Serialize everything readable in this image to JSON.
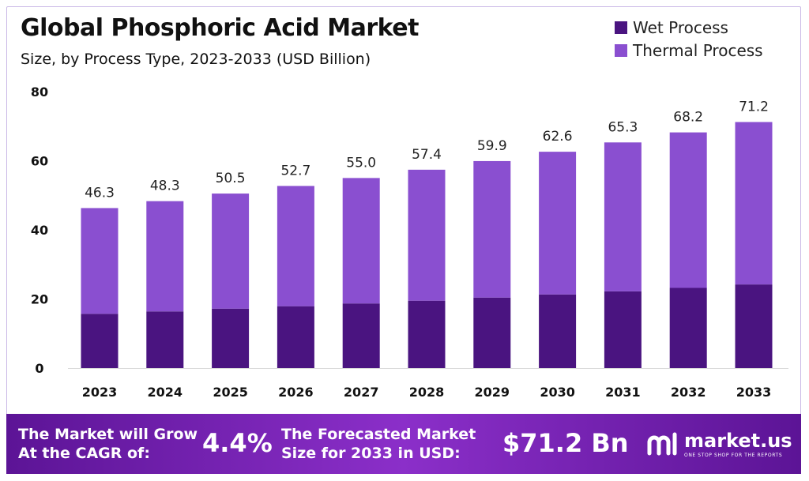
{
  "header": {
    "title": "Global Phosphoric Acid Market",
    "subtitle": "Size, by Process Type, 2023-2033 (USD Billion)"
  },
  "legend": [
    {
      "label": "Wet Process",
      "color": "#4a1480"
    },
    {
      "label": "Thermal Process",
      "color": "#8a4fd0"
    }
  ],
  "chart_data": {
    "type": "bar",
    "stacked": true,
    "categories": [
      "2023",
      "2024",
      "2025",
      "2026",
      "2027",
      "2028",
      "2029",
      "2030",
      "2031",
      "2032",
      "2033"
    ],
    "series": [
      {
        "name": "Wet Process",
        "color": "#4a1480",
        "values": [
          15.7,
          16.4,
          17.2,
          17.9,
          18.7,
          19.5,
          20.4,
          21.3,
          22.2,
          23.2,
          24.2
        ]
      },
      {
        "name": "Thermal Process",
        "color": "#8a4fd0",
        "values": [
          30.6,
          31.9,
          33.3,
          34.8,
          36.3,
          37.9,
          39.5,
          41.3,
          43.1,
          45.0,
          47.0
        ]
      }
    ],
    "totals": [
      "46.3",
      "48.3",
      "50.5",
      "52.7",
      "55.0",
      "57.4",
      "59.9",
      "62.6",
      "65.3",
      "68.2",
      "71.2"
    ],
    "yticks": [
      "0",
      "20",
      "40",
      "60",
      "80"
    ],
    "ylim": [
      0,
      80
    ],
    "grid": false,
    "legend_position": "top-right"
  },
  "banner": {
    "cagr_label_line1": "The Market will Grow",
    "cagr_label_line2": "At the CAGR of:",
    "cagr_value": "4.4%",
    "forecast_label_line1": "The Forecasted Market",
    "forecast_label_line2": "Size for 2033 in USD:",
    "forecast_value": "$71.2 Bn",
    "brand_name": "market.us",
    "brand_tagline": "ONE STOP SHOP FOR THE REPORTS"
  }
}
